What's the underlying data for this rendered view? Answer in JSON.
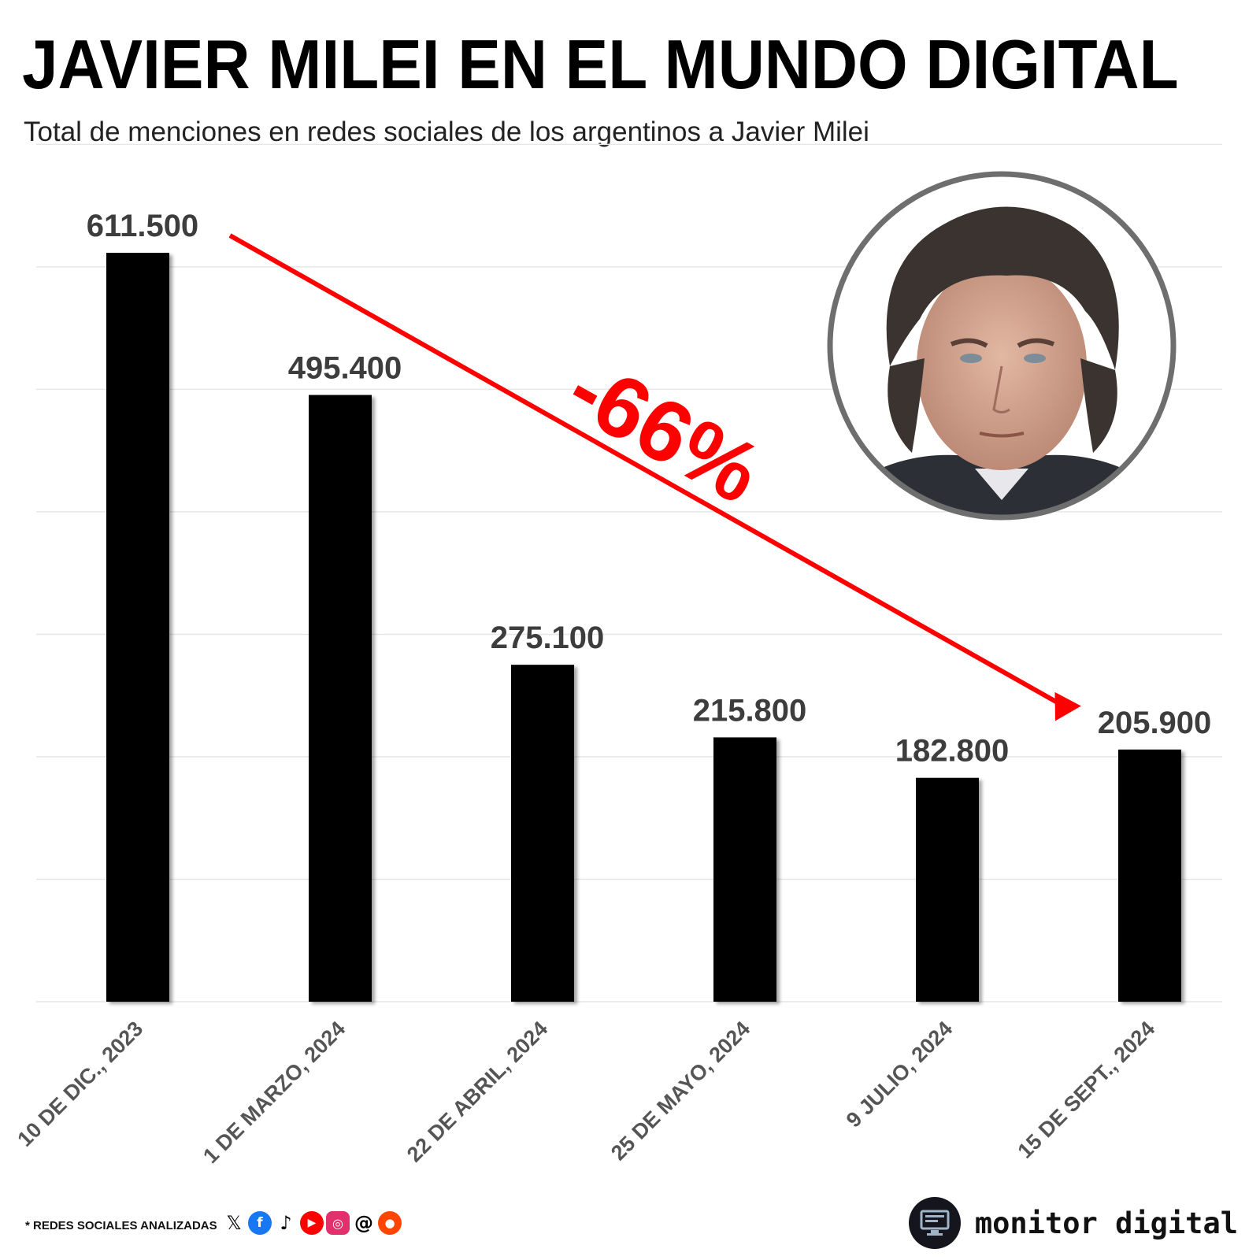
{
  "header": {
    "title": "JAVIER MILEI EN EL MUNDO DIGITAL",
    "subtitle": "Total de menciones en redes sociales de los argentinos a Javier Milei"
  },
  "chart_data": {
    "type": "bar",
    "title": "JAVIER MILEI EN EL MUNDO DIGITAL",
    "subtitle": "Total de menciones en redes sociales de los argentinos a Javier Milei",
    "categories": [
      "10 DE DIC., 2023",
      "1 DE MARZO, 2024",
      "22 DE ABRIL, 2024",
      "25 DE MAYO, 2024",
      "9 JULIO, 2024",
      "15 DE SEPT., 2024"
    ],
    "values": [
      611500,
      495400,
      275100,
      215800,
      182800,
      205900
    ],
    "data_labels": [
      "611.500",
      "495.400",
      "275.100",
      "215.800",
      "182.800",
      "205.900"
    ],
    "ylim": [
      0,
      700000
    ],
    "grid": true,
    "bar_color": "#000000",
    "annotation": {
      "text": "-66%",
      "color": "#ff0000"
    }
  },
  "footer": {
    "note": "* REDES SOCIALES ANALIZADAS",
    "social_icons": [
      "x-icon",
      "facebook-icon",
      "tiktok-icon",
      "youtube-icon",
      "instagram-icon",
      "threads-icon",
      "reddit-icon"
    ],
    "brand": "monitor digital"
  },
  "colors": {
    "accent": "#ff0000",
    "bars": "#000000",
    "grid": "#e6e6e6",
    "portrait_ring": "#6e6e6e"
  }
}
